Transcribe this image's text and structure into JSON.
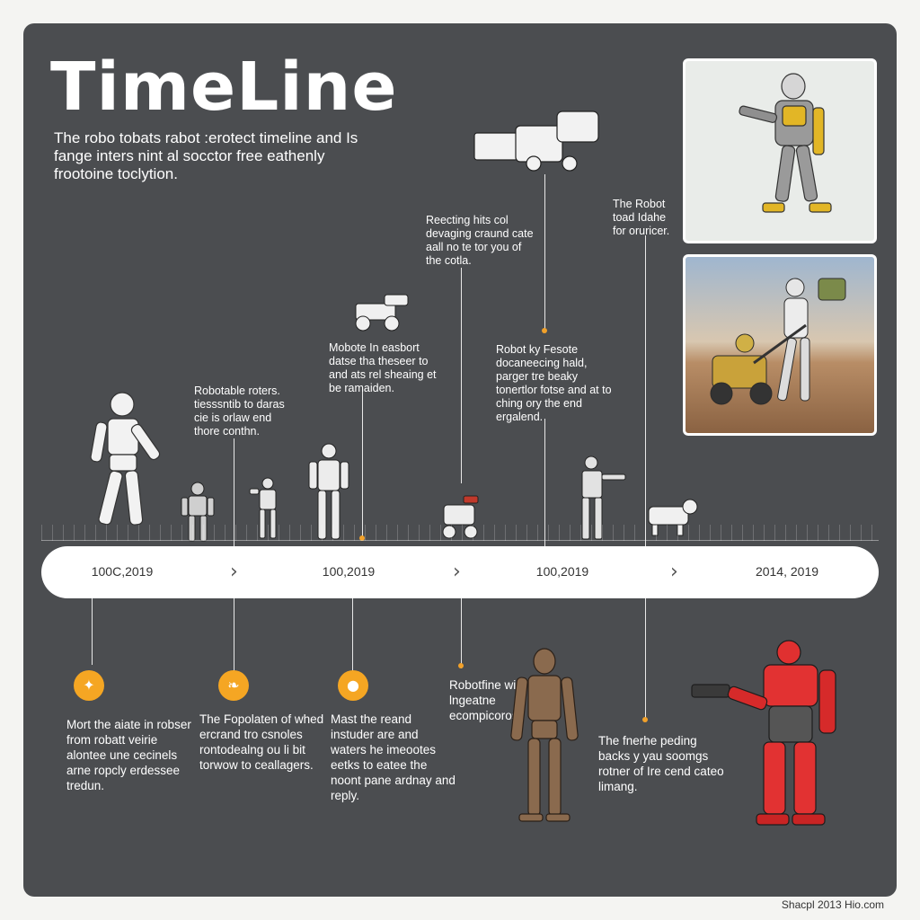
{
  "title": "TimeLine",
  "intro": "The robo tobats rabot :erotect timeline and Is fange inters nint al socctor free eathenly frootoine toclytion.",
  "top_notes": [
    "Robotable roters. tiesssntib to daras cie is orlaw end thore conthn.",
    "Mobote In easbort datse tha theseer to and ats rel sheaing et be ramaiden.",
    "Reecting hits col devaging craund cate aall no te tor you of the cotla.",
    "Robot ky Fesote docaneecing hald, parger tre beaky tonertlor fotse and at to ching ory the end ergalend.",
    "The Robot toad Idahe for oruricer."
  ],
  "timeline": {
    "labels": [
      "100C,2019",
      "100,2019",
      "100,2019",
      "2014, 2019"
    ],
    "chevron": "›"
  },
  "bottom_notes": [
    "Mort the aiate in robser from robatt veirie alontee une cecinels arne ropcly erdessee tredun.",
    "The Fopolaten of whed ercrand tro csnoles rontodealng ou li bit torwow to ceallagers.",
    "Mast the reand instuder are and waters he imeootes eetks to eatee the noont pane ardnay and reply.",
    "Robotfine wia lngeatne ecompicoros.",
    "The fnerhe peding backs y yau soomgs rotner of Ire cend cateo limang."
  ],
  "badges": [
    {
      "icon": "twitter-bird-icon",
      "glyph": "✦"
    },
    {
      "icon": "leaf-icon",
      "glyph": "❧"
    },
    {
      "icon": "chat-bubble-icon",
      "glyph": "●"
    }
  ],
  "credit": "Shacpl 2013 Hio.com",
  "colors": {
    "panel": "#4b4d50",
    "accent": "#f5a623",
    "bar": "#ffffff"
  }
}
